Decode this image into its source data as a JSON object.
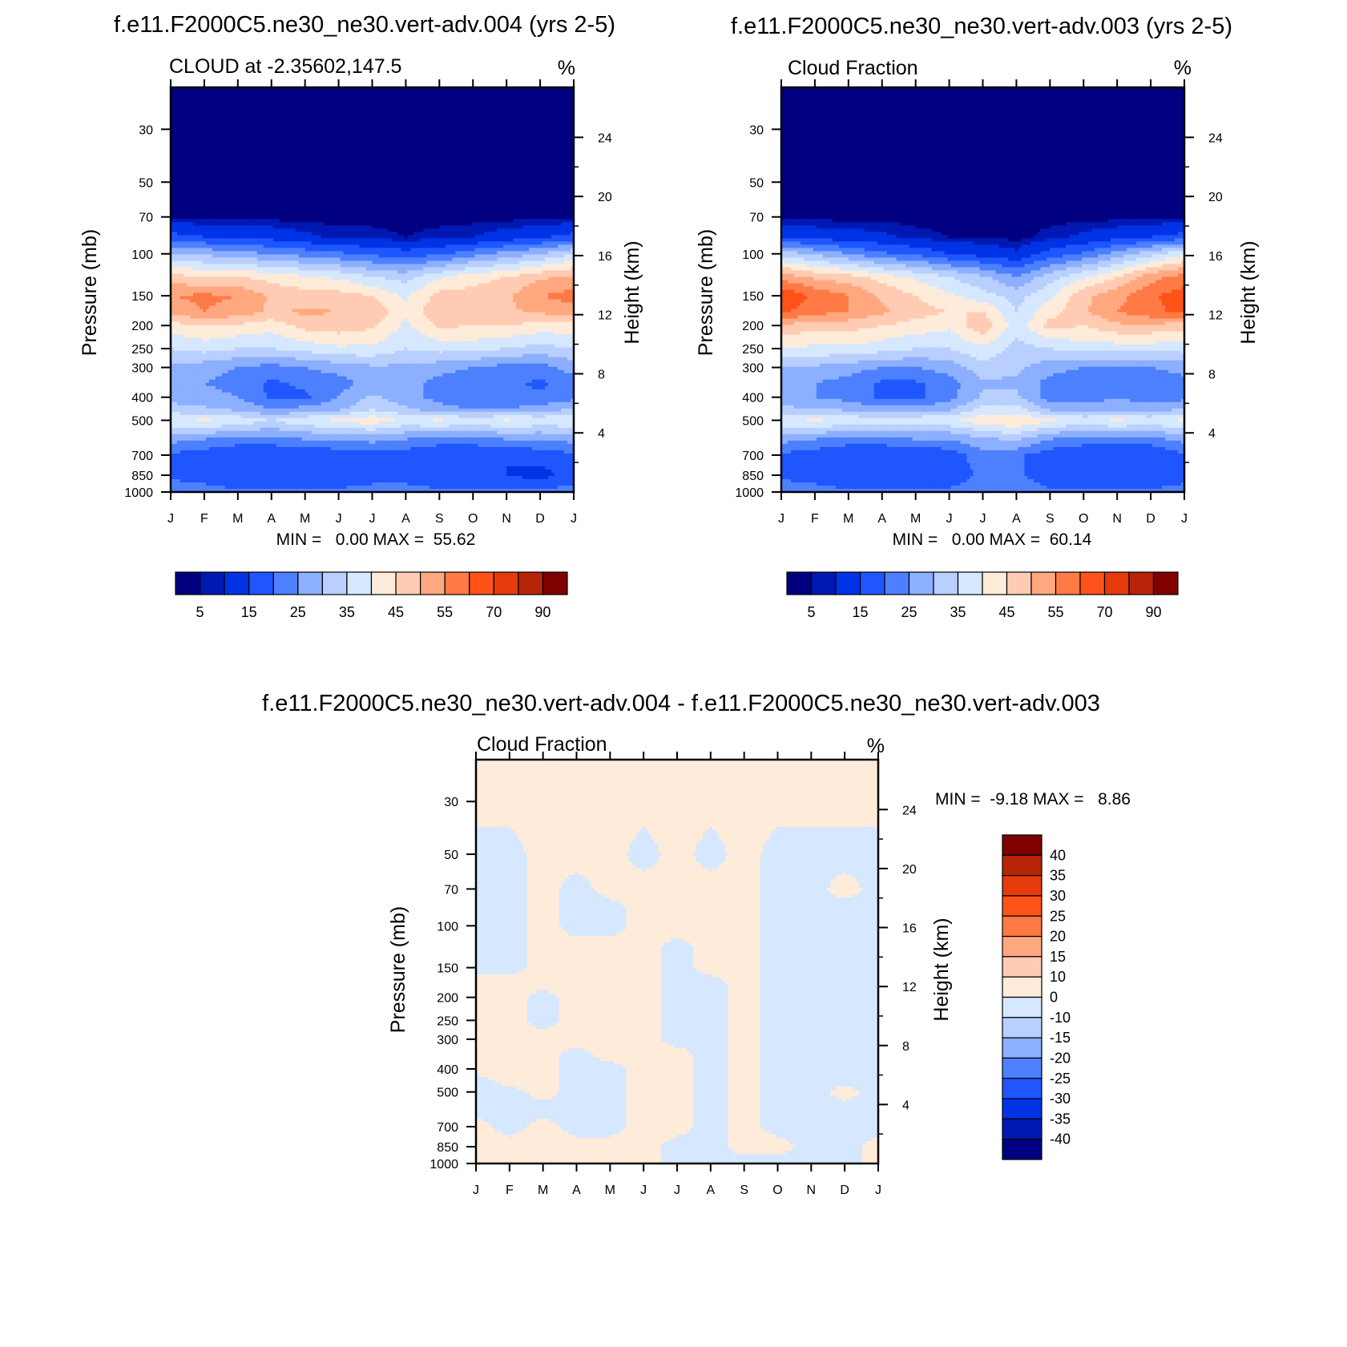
{
  "colors": {
    "abs_levels": [
      "#000080",
      "#0019B3",
      "#0033E6",
      "#1F56FF",
      "#4D80FF",
      "#8CAFFF",
      "#B8CFFF",
      "#D6E8FF",
      "#FFEBD9",
      "#FFCCB3",
      "#FFA880",
      "#FF7A45",
      "#FF5219",
      "#E63A0A",
      "#B82408",
      "#800000"
    ],
    "diff_levels": [
      "#000080",
      "#0019B3",
      "#0033E6",
      "#1F56FF",
      "#4D80FF",
      "#8CAFFF",
      "#B8CFFF",
      "#D6E8FF",
      "#FFEBD9",
      "#FFCCB3",
      "#FFA880",
      "#FF7A45",
      "#FF5219",
      "#E63A0A",
      "#B82408",
      "#800000"
    ]
  },
  "chart_data": [
    {
      "type": "heatmap",
      "title": "f.e11.F2000C5.ne30_ne30.vert-adv.004 (yrs 2-5)",
      "subtitle": "CLOUD at -2.35602,147.5",
      "units": "%",
      "xlabel": "",
      "ylabel": "Pressure (mb)",
      "ylabel_right": "Height (km)",
      "x_ticks": [
        "J",
        "F",
        "M",
        "A",
        "M",
        "J",
        "J",
        "A",
        "S",
        "O",
        "N",
        "D",
        "J"
      ],
      "y_ticks": [
        "30",
        "50",
        "70",
        "100",
        "150",
        "200",
        "250",
        "300",
        "400",
        "500",
        "700",
        "850",
        "1000"
      ],
      "y_ticks_values": [
        30,
        50,
        70,
        100,
        150,
        200,
        250,
        300,
        400,
        500,
        700,
        850,
        1000
      ],
      "y_right_ticks": [
        "24",
        "20",
        "16",
        "12",
        "8",
        "4"
      ],
      "y_right_values_km": [
        24,
        20,
        16,
        12,
        8,
        4
      ],
      "ylim": [
        20,
        1000
      ],
      "y_scale": "log (pressure)",
      "stats": "MIN =   0.00 MAX =  55.62",
      "min": 0.0,
      "max": 55.62,
      "colorbar_labels": [
        "5",
        "15",
        "25",
        "35",
        "45",
        "55",
        "70",
        "90"
      ],
      "levels": [
        3,
        5,
        10,
        15,
        20,
        25,
        30,
        35,
        40,
        45,
        50,
        55,
        60,
        70,
        80,
        90
      ],
      "pressure_levels": [
        20,
        30,
        50,
        70,
        85,
        100,
        125,
        150,
        175,
        200,
        250,
        300,
        350,
        400,
        450,
        500,
        600,
        700,
        850,
        1000
      ],
      "values": [
        [
          2,
          2,
          2,
          2,
          2,
          2,
          2,
          2,
          2,
          2,
          2,
          2,
          2
        ],
        [
          2,
          2,
          2,
          2,
          2,
          2,
          2,
          2,
          2,
          2,
          2,
          2,
          2
        ],
        [
          2,
          2,
          2,
          2,
          2,
          2,
          2,
          2,
          2,
          2,
          2,
          2,
          2
        ],
        [
          2,
          2,
          2,
          2,
          2,
          2,
          2,
          2,
          2,
          2,
          2,
          2,
          2
        ],
        [
          12,
          10,
          9,
          8,
          6,
          4,
          4,
          3,
          4,
          5,
          7,
          9,
          12
        ],
        [
          25,
          24,
          22,
          20,
          18,
          16,
          14,
          12,
          14,
          18,
          22,
          25,
          30
        ],
        [
          42,
          40,
          40,
          38,
          36,
          34,
          30,
          28,
          34,
          38,
          40,
          44,
          46
        ],
        [
          50,
          51,
          50,
          44,
          42,
          42,
          40,
          34,
          42,
          42,
          44,
          50,
          52
        ],
        [
          47,
          50,
          48,
          44,
          46,
          45,
          44,
          36,
          44,
          42,
          44,
          46,
          48
        ],
        [
          38,
          40,
          39,
          37,
          42,
          43,
          41,
          34,
          41,
          40,
          40,
          38,
          38
        ],
        [
          30,
          32,
          30,
          30,
          32,
          34,
          34,
          30,
          32,
          32,
          30,
          28,
          30
        ],
        [
          24,
          22,
          20,
          18,
          20,
          22,
          24,
          24,
          22,
          20,
          18,
          18,
          22
        ],
        [
          22,
          20,
          18,
          14,
          16,
          18,
          22,
          22,
          18,
          16,
          16,
          14,
          18
        ],
        [
          22,
          22,
          20,
          14,
          14,
          20,
          26,
          22,
          18,
          16,
          18,
          16,
          18
        ],
        [
          28,
          26,
          24,
          20,
          22,
          24,
          30,
          26,
          22,
          20,
          20,
          22,
          26
        ],
        [
          34,
          36,
          34,
          30,
          34,
          36,
          38,
          34,
          36,
          34,
          36,
          34,
          34
        ],
        [
          22,
          20,
          18,
          18,
          20,
          20,
          22,
          20,
          18,
          18,
          20,
          20,
          22
        ],
        [
          14,
          12,
          10,
          10,
          10,
          12,
          12,
          12,
          10,
          10,
          10,
          12,
          14
        ],
        [
          14,
          12,
          10,
          10,
          10,
          12,
          14,
          14,
          12,
          10,
          10,
          8,
          12
        ],
        [
          18,
          18,
          16,
          16,
          16,
          16,
          16,
          16,
          16,
          16,
          16,
          16,
          18
        ]
      ]
    },
    {
      "type": "heatmap",
      "title": "f.e11.F2000C5.ne30_ne30.vert-adv.003 (yrs 2-5)",
      "subtitle": "Cloud Fraction",
      "units": "%",
      "xlabel": "",
      "ylabel": "Pressure (mb)",
      "ylabel_right": "Height (km)",
      "x_ticks": [
        "J",
        "F",
        "M",
        "A",
        "M",
        "J",
        "J",
        "A",
        "S",
        "O",
        "N",
        "D",
        "J"
      ],
      "y_ticks": [
        "30",
        "50",
        "70",
        "100",
        "150",
        "200",
        "250",
        "300",
        "400",
        "500",
        "700",
        "850",
        "1000"
      ],
      "y_ticks_values": [
        30,
        50,
        70,
        100,
        150,
        200,
        250,
        300,
        400,
        500,
        700,
        850,
        1000
      ],
      "y_right_ticks": [
        "24",
        "20",
        "16",
        "12",
        "8",
        "4"
      ],
      "y_right_values_km": [
        24,
        20,
        16,
        12,
        8,
        4
      ],
      "ylim": [
        20,
        1000
      ],
      "y_scale": "log (pressure)",
      "stats": "MIN =   0.00 MAX =  60.14",
      "min": 0.0,
      "max": 60.14,
      "colorbar_labels": [
        "5",
        "15",
        "25",
        "35",
        "45",
        "55",
        "70",
        "90"
      ],
      "levels": [
        3,
        5,
        10,
        15,
        20,
        25,
        30,
        35,
        40,
        45,
        50,
        55,
        60,
        70,
        80,
        90
      ],
      "pressure_levels": [
        20,
        30,
        50,
        70,
        85,
        100,
        125,
        150,
        175,
        200,
        250,
        300,
        350,
        400,
        450,
        500,
        600,
        700,
        850,
        1000
      ],
      "values": [
        [
          2,
          2,
          2,
          2,
          2,
          2,
          2,
          2,
          2,
          2,
          2,
          2,
          2
        ],
        [
          2,
          2,
          2,
          2,
          2,
          2,
          2,
          2,
          2,
          2,
          2,
          2,
          2
        ],
        [
          2,
          2,
          2,
          2,
          2,
          2,
          2,
          2,
          2,
          2,
          2,
          2,
          2
        ],
        [
          2,
          2,
          2,
          2,
          2,
          2,
          2,
          2,
          2,
          2,
          2,
          2,
          2
        ],
        [
          10,
          8,
          7,
          6,
          4,
          3,
          3,
          2,
          4,
          6,
          8,
          10,
          12
        ],
        [
          28,
          24,
          20,
          16,
          14,
          10,
          8,
          6,
          12,
          16,
          22,
          28,
          34
        ],
        [
          48,
          44,
          42,
          38,
          34,
          30,
          26,
          20,
          28,
          34,
          40,
          48,
          52
        ],
        [
          60,
          54,
          50,
          44,
          40,
          36,
          32,
          28,
          34,
          44,
          48,
          54,
          58
        ],
        [
          56,
          52,
          50,
          46,
          42,
          40,
          40,
          30,
          38,
          44,
          50,
          54,
          56
        ],
        [
          44,
          42,
          42,
          40,
          38,
          36,
          44,
          32,
          42,
          40,
          44,
          44,
          42
        ],
        [
          34,
          34,
          34,
          32,
          30,
          30,
          34,
          28,
          30,
          32,
          32,
          32,
          32
        ],
        [
          24,
          24,
          22,
          20,
          20,
          22,
          28,
          26,
          22,
          20,
          20,
          20,
          22
        ],
        [
          22,
          20,
          18,
          14,
          14,
          18,
          24,
          24,
          18,
          16,
          18,
          16,
          18
        ],
        [
          22,
          20,
          18,
          14,
          14,
          18,
          26,
          26,
          18,
          18,
          20,
          18,
          18
        ],
        [
          26,
          26,
          24,
          22,
          22,
          24,
          32,
          32,
          24,
          22,
          22,
          22,
          26
        ],
        [
          34,
          36,
          34,
          32,
          34,
          34,
          38,
          40,
          36,
          34,
          36,
          34,
          36
        ],
        [
          22,
          20,
          18,
          18,
          20,
          20,
          24,
          26,
          20,
          18,
          18,
          18,
          22
        ],
        [
          14,
          12,
          10,
          10,
          10,
          12,
          18,
          16,
          12,
          10,
          10,
          10,
          14
        ],
        [
          14,
          12,
          10,
          10,
          12,
          12,
          16,
          16,
          12,
          10,
          10,
          10,
          12
        ],
        [
          18,
          18,
          16,
          16,
          16,
          16,
          18,
          18,
          16,
          16,
          16,
          16,
          18
        ]
      ]
    },
    {
      "type": "heatmap",
      "title": "f.e11.F2000C5.ne30_ne30.vert-adv.004 - f.e11.F2000C5.ne30_ne30.vert-adv.003",
      "subtitle": "Cloud Fraction",
      "units": "%",
      "xlabel": "",
      "ylabel": "Pressure (mb)",
      "ylabel_right": "Height (km)",
      "x_ticks": [
        "J",
        "F",
        "M",
        "A",
        "M",
        "J",
        "J",
        "A",
        "S",
        "O",
        "N",
        "D",
        "J"
      ],
      "y_ticks": [
        "30",
        "50",
        "70",
        "100",
        "150",
        "200",
        "250",
        "300",
        "400",
        "500",
        "700",
        "850",
        "1000"
      ],
      "y_ticks_values": [
        30,
        50,
        70,
        100,
        150,
        200,
        250,
        300,
        400,
        500,
        700,
        850,
        1000
      ],
      "y_right_ticks": [
        "24",
        "20",
        "16",
        "12",
        "8",
        "4"
      ],
      "y_right_values_km": [
        24,
        20,
        16,
        12,
        8,
        4
      ],
      "ylim": [
        20,
        1000
      ],
      "y_scale": "log (pressure)",
      "stats": "MIN =  -9.18 MAX =   8.86",
      "min": -9.18,
      "max": 8.86,
      "colorbar_labels": [
        "40",
        "35",
        "30",
        "25",
        "20",
        "15",
        "10",
        "0",
        "-10",
        "-15",
        "-20",
        "-25",
        "-30",
        "-35",
        "-40"
      ],
      "levels": [
        -40,
        -35,
        -30,
        -25,
        -20,
        -15,
        -10,
        0,
        10,
        15,
        20,
        25,
        30,
        35,
        40
      ],
      "pressure_levels": [
        20,
        30,
        50,
        70,
        85,
        100,
        125,
        150,
        175,
        200,
        250,
        300,
        350,
        400,
        450,
        500,
        600,
        700,
        850,
        1000
      ],
      "values": [
        [
          1,
          1,
          1,
          1,
          1,
          1,
          1,
          1,
          1,
          1,
          1,
          1,
          1
        ],
        [
          1,
          1,
          1,
          1,
          1,
          1,
          1,
          1,
          1,
          1,
          1,
          1,
          1
        ],
        [
          -1,
          -1,
          1,
          1,
          1,
          -1,
          1,
          -1,
          1,
          -1,
          -1,
          -1,
          -1
        ],
        [
          -1,
          -1,
          1,
          -1,
          1,
          1,
          1,
          1,
          1,
          -1,
          -1,
          1,
          -1
        ],
        [
          -1,
          -1,
          1,
          -1,
          -1,
          1,
          1,
          1,
          1,
          -1,
          -1,
          -1,
          -1
        ],
        [
          -1,
          -1,
          1,
          -1,
          -1,
          1,
          1,
          1,
          1,
          -1,
          -1,
          -1,
          -1
        ],
        [
          -1,
          -1,
          1,
          1,
          1,
          1,
          -1,
          1,
          1,
          -1,
          -1,
          -1,
          -1
        ],
        [
          -1,
          -1,
          1,
          1,
          1,
          1,
          -1,
          1,
          1,
          -1,
          -1,
          -1,
          -1
        ],
        [
          1,
          1,
          1,
          1,
          1,
          1,
          -1,
          -1,
          1,
          -1,
          -1,
          -1,
          -1
        ],
        [
          1,
          1,
          -1,
          1,
          1,
          1,
          -1,
          -1,
          1,
          -1,
          -1,
          -1,
          -1
        ],
        [
          1,
          1,
          -1,
          1,
          1,
          1,
          -1,
          -1,
          1,
          -1,
          -1,
          -1,
          -1
        ],
        [
          1,
          1,
          1,
          1,
          1,
          1,
          -1,
          -1,
          1,
          -1,
          -1,
          -1,
          -1
        ],
        [
          1,
          1,
          1,
          -1,
          1,
          1,
          1,
          -1,
          1,
          -1,
          -1,
          -1,
          -1
        ],
        [
          1,
          1,
          1,
          -1,
          -1,
          1,
          1,
          -1,
          1,
          -1,
          -1,
          -1,
          -1
        ],
        [
          -1,
          1,
          1,
          -1,
          -1,
          1,
          1,
          -1,
          1,
          -1,
          -1,
          -1,
          -1
        ],
        [
          -1,
          -1,
          1,
          -1,
          -1,
          1,
          1,
          -1,
          1,
          -1,
          -1,
          1,
          -1
        ],
        [
          -1,
          -1,
          -1,
          -1,
          -1,
          1,
          1,
          -1,
          1,
          -1,
          -1,
          -1,
          -1
        ],
        [
          1,
          -1,
          1,
          -1,
          -1,
          1,
          1,
          -1,
          1,
          -1,
          -1,
          -1,
          -1
        ],
        [
          1,
          1,
          1,
          1,
          1,
          1,
          -1,
          -1,
          1,
          1,
          -1,
          -1,
          1
        ],
        [
          1,
          1,
          1,
          1,
          1,
          1,
          -1,
          -1,
          -1,
          -1,
          -1,
          -1,
          1
        ]
      ]
    }
  ]
}
